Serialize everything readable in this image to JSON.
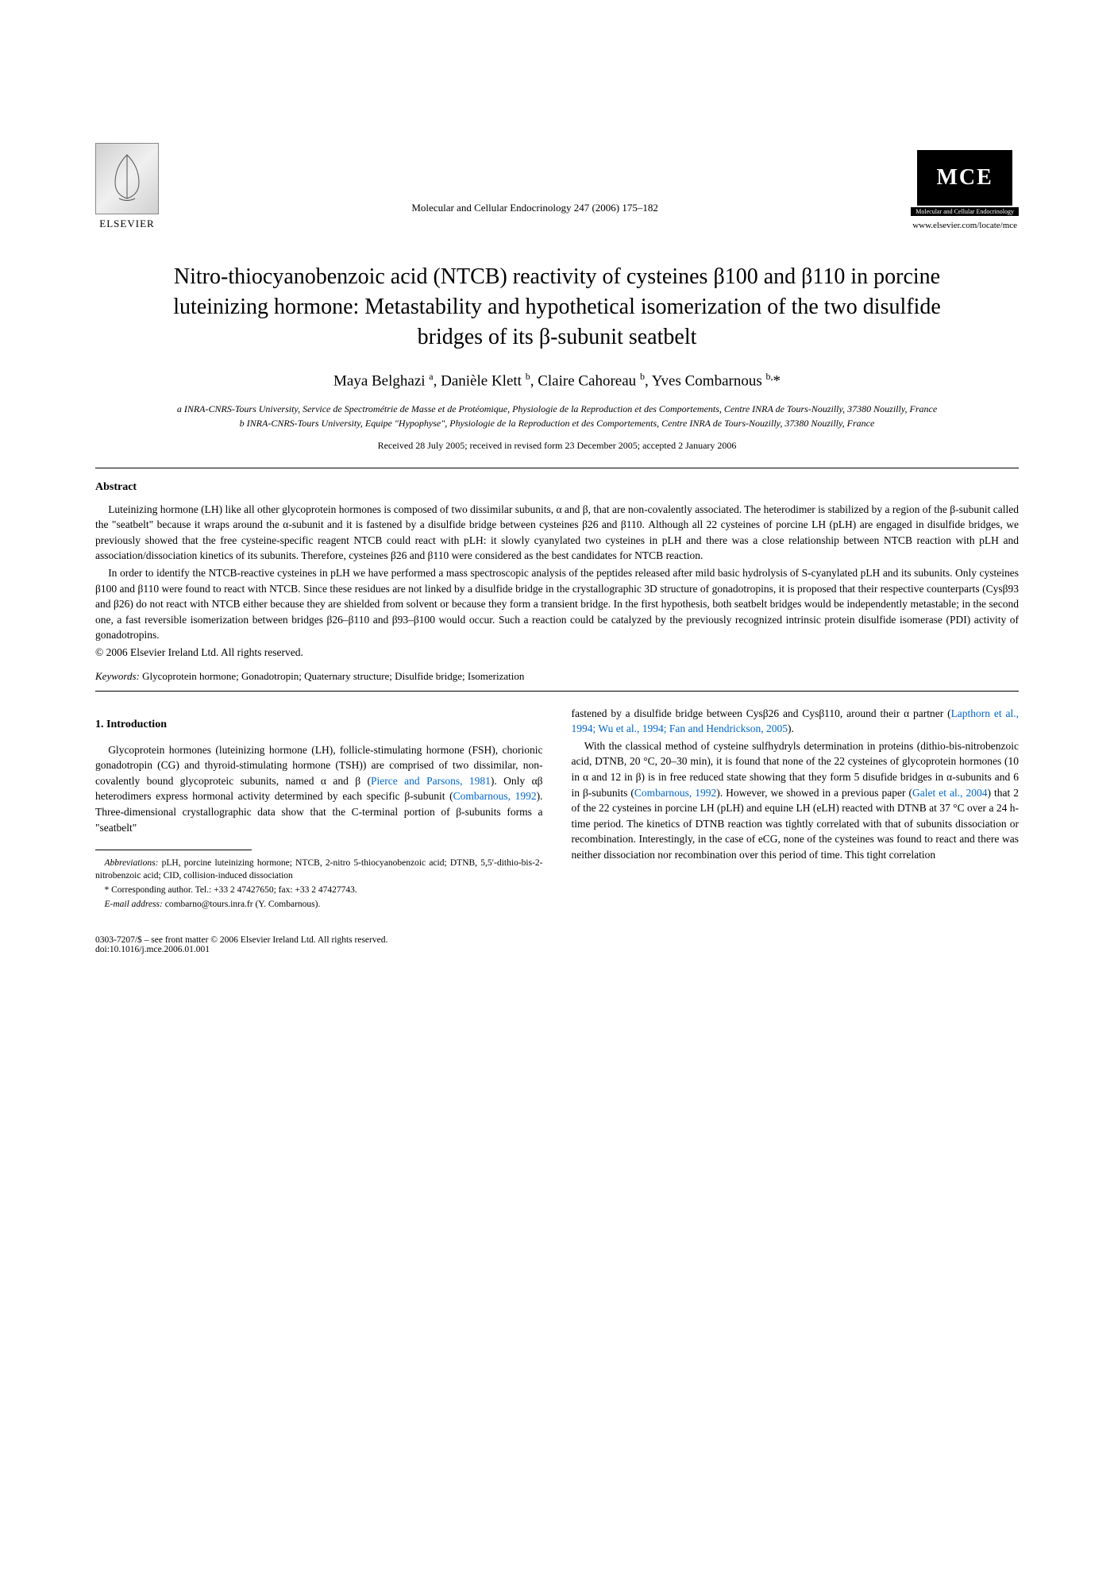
{
  "header": {
    "publisher": "ELSEVIER",
    "journal_ref": "Molecular and Cellular Endocrinology 247 (2006) 175–182",
    "journal_logo": "MCE",
    "journal_logo_label": "Molecular and Cellular Endocrinology",
    "journal_url": "www.elsevier.com/locate/mce"
  },
  "title": "Nitro-thiocyanobenzoic acid (NTCB) reactivity of cysteines β100 and β110 in porcine luteinizing hormone: Metastability and hypothetical isomerization of the two disulfide bridges of its β-subunit seatbelt",
  "authors_html": "Maya Belghazi <sup>a</sup>, Danièle Klett <sup>b</sup>, Claire Cahoreau <sup>b</sup>, Yves Combarnous <sup>b,</sup>*",
  "affiliations": {
    "a": "a INRA-CNRS-Tours University, Service de Spectrométrie de Masse et de Protéomique, Physiologie de la Reproduction et des Comportements, Centre INRA de Tours-Nouzilly, 37380 Nouzilly, France",
    "b": "b INRA-CNRS-Tours University, Equipe \"Hypophyse\", Physiologie de la Reproduction et des Comportements, Centre INRA de Tours-Nouzilly, 37380 Nouzilly, France"
  },
  "dates": "Received 28 July 2005; received in revised form 23 December 2005; accepted 2 January 2006",
  "abstract": {
    "heading": "Abstract",
    "p1": "Luteinizing hormone (LH) like all other glycoprotein hormones is composed of two dissimilar subunits, α and β, that are non-covalently associated. The heterodimer is stabilized by a region of the β-subunit called the \"seatbelt\" because it wraps around the α-subunit and it is fastened by a disulfide bridge between cysteines β26 and β110. Although all 22 cysteines of porcine LH (pLH) are engaged in disulfide bridges, we previously showed that the free cysteine-specific reagent NTCB could react with pLH: it slowly cyanylated two cysteines in pLH and there was a close relationship between NTCB reaction with pLH and association/dissociation kinetics of its subunits. Therefore, cysteines β26 and β110 were considered as the best candidates for NTCB reaction.",
    "p2": "In order to identify the NTCB-reactive cysteines in pLH we have performed a mass spectroscopic analysis of the peptides released after mild basic hydrolysis of S-cyanylated pLH and its subunits. Only cysteines β100 and β110 were found to react with NTCB. Since these residues are not linked by a disulfide bridge in the crystallographic 3D structure of gonadotropins, it is proposed that their respective counterparts (Cysβ93 and β26) do not react with NTCB either because they are shielded from solvent or because they form a transient bridge. In the first hypothesis, both seatbelt bridges would be independently metastable; in the second one, a fast reversible isomerization between bridges β26–β110 and β93–β100 would occur. Such a reaction could be catalyzed by the previously recognized intrinsic protein disulfide isomerase (PDI) activity of gonadotropins.",
    "copyright": "© 2006 Elsevier Ireland Ltd. All rights reserved."
  },
  "keywords": {
    "label": "Keywords:",
    "text": " Glycoprotein hormone; Gonadotropin; Quaternary structure; Disulfide bridge; Isomerization"
  },
  "section1": {
    "heading": "1. Introduction",
    "left_p1_a": "Glycoprotein hormones (luteinizing hormone (LH), follicle-stimulating hormone (FSH), chorionic gonadotropin (CG) and thyroid-stimulating hormone (TSH)) are comprised of two dissimilar, non-covalently bound glycoproteic subunits, named α and β (",
    "left_p1_cite1": "Pierce and Parsons, 1981",
    "left_p1_b": "). Only αβ heterodimers express hormonal activity determined by each specific β-subunit (",
    "left_p1_cite2": "Combarnous, 1992",
    "left_p1_c": "). Three-dimensional crystallographic data show that the C-terminal portion of β-subunits forms a \"seatbelt\"",
    "right_p1_a": "fastened by a disulfide bridge between Cysβ26 and Cysβ110, around their α partner (",
    "right_p1_cite1": "Lapthorn et al., 1994; Wu et al., 1994; Fan and Hendrickson, 2005",
    "right_p1_b": ").",
    "right_p2_a": "With the classical method of cysteine sulfhydryls determination in proteins (dithio-bis-nitrobenzoic acid, DTNB, 20 °C, 20–30 min), it is found that none of the 22 cysteines of glycoprotein hormones (10 in α and 12 in β) is in free reduced state showing that they form 5 disufide bridges in α-subunits and 6 in β-subunits (",
    "right_p2_cite1": "Combarnous, 1992",
    "right_p2_b": "). However, we showed in a previous paper (",
    "right_p2_cite2": "Galet et al., 2004",
    "right_p2_c": ") that 2 of the 22 cysteines in porcine LH (pLH) and equine LH (eLH) reacted with DTNB at 37 °C over a 24 h-time period. The kinetics of DTNB reaction was tightly correlated with that of subunits dissociation or recombination. Interestingly, in the case of eCG, none of the cysteines was found to react and there was neither dissociation nor recombination over this period of time. This tight correlation"
  },
  "footnotes": {
    "abbrev_label": "Abbreviations:",
    "abbrev_text": " pLH, porcine luteinizing hormone; NTCB, 2-nitro 5-thiocyanobenzoic acid; DTNB, 5,5′-dithio-bis-2-nitrobenzoic acid; CID, collision-induced dissociation",
    "corresp": "* Corresponding author. Tel.: +33 2 47427650; fax: +33 2 47427743.",
    "email_label": "E-mail address:",
    "email_text": " combarno@tours.inra.fr (Y. Combarnous)."
  },
  "doi": {
    "line1": "0303-7207/$ – see front matter © 2006 Elsevier Ireland Ltd. All rights reserved.",
    "line2": "doi:10.1016/j.mce.2006.01.001"
  }
}
